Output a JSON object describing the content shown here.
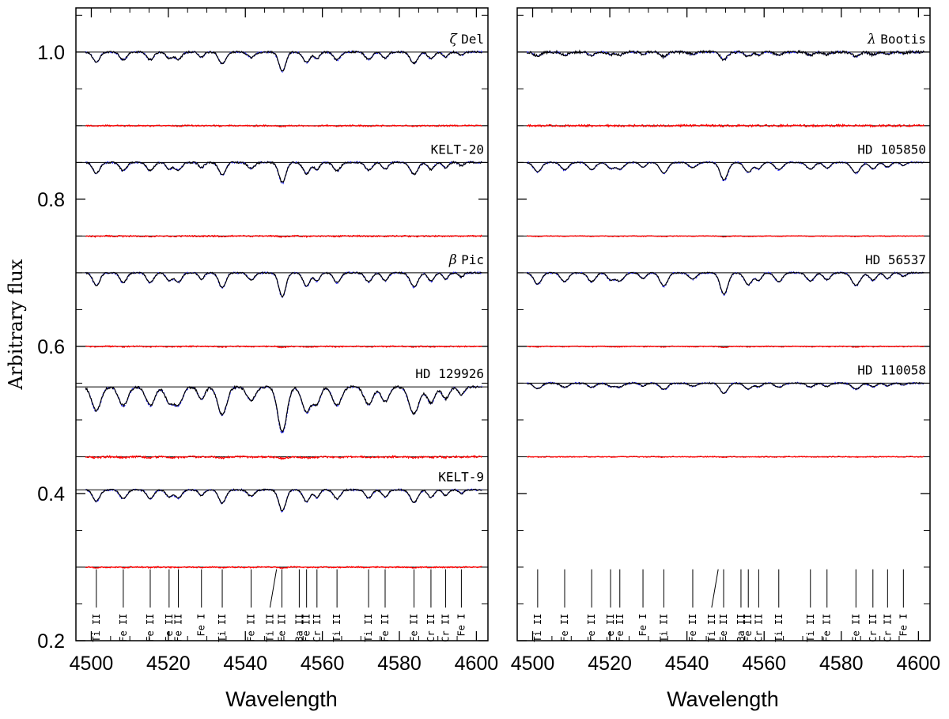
{
  "figure": {
    "y_axis_label": "Arbitrary flux",
    "x_axis_label": "Wavelength"
  },
  "chart_data": [
    {
      "type": "line",
      "panel": "left",
      "title": "",
      "xlabel": "Wavelength",
      "ylabel": "Arbitrary flux",
      "xlim": [
        4496,
        4603
      ],
      "ylim": [
        0.2,
        1.06
      ],
      "x_ticks": [
        4500,
        4520,
        4540,
        4560,
        4580,
        4600
      ],
      "y_ticks": [
        0.2,
        0.4,
        0.6,
        0.8,
        1.0
      ],
      "y_tick_labels": [
        "0.2",
        "0.4",
        "0.6",
        "0.8",
        "1.0"
      ],
      "stars": [
        {
          "name": "ζ Del",
          "greek": "ζ",
          "suffix": "Del",
          "continuum": 1.0,
          "residual_level": 0.9,
          "depth": 0.75,
          "width": 1.0,
          "noise": 0.6
        },
        {
          "name": "KELT-20",
          "greek": "",
          "suffix": "KELT-20",
          "continuum": 0.85,
          "residual_level": 0.75,
          "depth": 0.8,
          "width": 1.0,
          "noise": 0.6
        },
        {
          "name": "β Pic",
          "greek": "β",
          "suffix": "Pic",
          "continuum": 0.7,
          "residual_level": 0.6,
          "depth": 0.95,
          "width": 1.0,
          "noise": 0.5
        },
        {
          "name": "HD 129926",
          "greek": "",
          "suffix": "HD 129926",
          "continuum": 0.545,
          "residual_level": 0.45,
          "depth": 1.8,
          "width": 1.3,
          "noise": 0.8
        },
        {
          "name": "KELT-9",
          "greek": "",
          "suffix": "KELT-9",
          "continuum": 0.405,
          "residual_level": 0.3,
          "depth": 0.85,
          "width": 1.0,
          "noise": 0.5
        }
      ]
    },
    {
      "type": "line",
      "panel": "right",
      "title": "",
      "xlabel": "Wavelength",
      "ylabel": "",
      "xlim": [
        4496,
        4603
      ],
      "ylim": [
        0.2,
        1.06
      ],
      "x_ticks": [
        4500,
        4520,
        4540,
        4560,
        4580,
        4600
      ],
      "y_ticks": [
        0.2,
        0.4,
        0.6,
        0.8,
        1.0
      ],
      "y_tick_labels": [],
      "stars": [
        {
          "name": "λ Bootis",
          "greek": "λ",
          "suffix": "Bootis",
          "continuum": 1.0,
          "residual_level": 0.9,
          "depth": 0.3,
          "width": 1.0,
          "noise": 0.9
        },
        {
          "name": "HD 105850",
          "greek": "",
          "suffix": "HD 105850",
          "continuum": 0.85,
          "residual_level": 0.75,
          "depth": 0.7,
          "width": 1.1,
          "noise": 0.3
        },
        {
          "name": "HD 56537",
          "greek": "",
          "suffix": "HD 56537",
          "continuum": 0.7,
          "residual_level": 0.6,
          "depth": 0.85,
          "width": 1.1,
          "noise": 0.4
        },
        {
          "name": "HD 110058",
          "greek": "",
          "suffix": "HD 110058",
          "continuum": 0.55,
          "residual_level": 0.45,
          "depth": 0.4,
          "width": 1.1,
          "noise": 0.4
        }
      ]
    }
  ],
  "line_identifications": [
    {
      "label": "Ti II",
      "x": 4501.3
    },
    {
      "label": "Fe II",
      "x": 4508.3
    },
    {
      "label": "Fe II",
      "x": 4515.3
    },
    {
      "label": "Fe II",
      "x": 4520.2
    },
    {
      "label": "Fe II",
      "x": 4522.6
    },
    {
      "label": "Fe I",
      "x": 4528.6
    },
    {
      "label": "Ti II",
      "x": 4534.0
    },
    {
      "label": "Fe II",
      "x": 4541.5
    },
    {
      "label": "Ti II",
      "x": 4549.6
    },
    {
      "label": "Fe II",
      "x": 4549.5
    },
    {
      "label": "Ba II",
      "x": 4554.0
    },
    {
      "label": "Fe II",
      "x": 4555.9
    },
    {
      "label": "Cr II",
      "x": 4558.6
    },
    {
      "label": "Ti II",
      "x": 4563.8
    },
    {
      "label": "Ti II",
      "x": 4572.0
    },
    {
      "label": "Fe II",
      "x": 4576.3
    },
    {
      "label": "Fe II",
      "x": 4583.8
    },
    {
      "label": "Cr II",
      "x": 4588.2
    },
    {
      "label": "Cr II",
      "x": 4592.0
    },
    {
      "label": "Fe I",
      "x": 4596.1
    }
  ],
  "colors": {
    "observed": "#000000",
    "model": "#2a2aff",
    "residual": "#ff0000",
    "frame": "#000000"
  }
}
